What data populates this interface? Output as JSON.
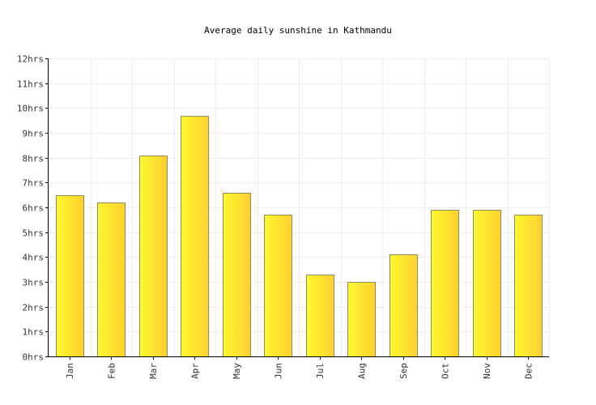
{
  "chart_data": {
    "type": "bar",
    "title": "Average daily sunshine in Kathmandu",
    "xlabel": "",
    "ylabel": "",
    "unit_suffix": "hrs",
    "categories": [
      "Jan",
      "Feb",
      "Mar",
      "Apr",
      "May",
      "Jun",
      "Jul",
      "Aug",
      "Sep",
      "Oct",
      "Nov",
      "Dec"
    ],
    "values": [
      6.5,
      6.2,
      8.1,
      9.7,
      6.6,
      5.7,
      3.3,
      3.0,
      4.1,
      5.9,
      5.9,
      5.7
    ],
    "ylim": [
      0,
      12
    ],
    "y_ticks": [
      "0hrs",
      "1hrs",
      "2hrs",
      "3hrs",
      "4hrs",
      "5hrs",
      "6hrs",
      "7hrs",
      "8hrs",
      "9hrs",
      "10hrs",
      "11hrs",
      "12hrs"
    ],
    "grid": true,
    "legend": "none",
    "colors": {
      "bar_start": "#fff830",
      "bar_end": "#ffd030",
      "bar_stroke": "#8c8c60",
      "grid": "#ececec"
    }
  }
}
